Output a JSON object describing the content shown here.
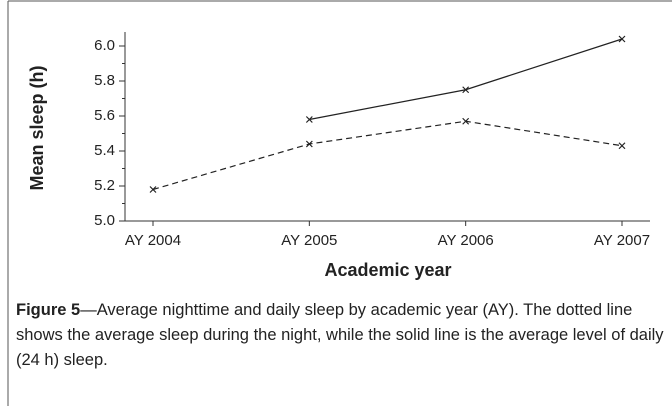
{
  "chart_data": {
    "type": "line",
    "xlabel": "Academic year",
    "ylabel": "Mean sleep (h)",
    "categories": [
      "AY 2004",
      "AY 2005",
      "AY 2006",
      "AY 2007"
    ],
    "series": [
      {
        "color": "#222222",
        "style": "solid",
        "values": [
          null,
          5.58,
          5.75,
          6.04
        ]
      },
      {
        "color": "#222222",
        "style": "dashed",
        "values": [
          5.18,
          5.44,
          5.57,
          5.43
        ]
      }
    ],
    "ylim": [
      5.0,
      6.08
    ],
    "yticks": [
      {
        "value": 5.0,
        "label": "5.0"
      },
      {
        "value": 5.2,
        "label": "5.2"
      },
      {
        "value": 5.4,
        "label": "5.4"
      },
      {
        "value": 5.6,
        "label": "5.6"
      },
      {
        "value": 5.8,
        "label": "5.8"
      },
      {
        "value": 6.0,
        "label": "6.0"
      }
    ],
    "yminorticks": [
      5.1,
      5.3,
      5.5,
      5.7,
      5.9
    ]
  },
  "caption": {
    "label": "Figure 5",
    "text": "—Average nighttime and daily sleep by academic year (AY). The dotted line shows the average sleep during the night, while the solid line is the average level of daily (24 h) sleep."
  }
}
